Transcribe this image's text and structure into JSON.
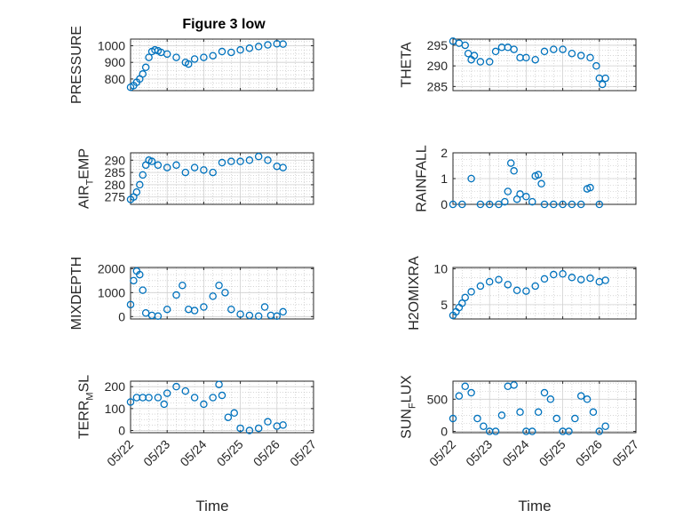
{
  "title": "Figure 3 low",
  "colors": {
    "marker": "#0072bd",
    "axis": "#262626",
    "grid": "#d0d0d0",
    "minor_grid": "#bdbdbd"
  },
  "time_ticks": [
    "05/22",
    "05/23",
    "05/24",
    "05/25",
    "05/26",
    "05/27"
  ],
  "xlabel": "Time",
  "chart_data": [
    {
      "type": "scatter",
      "ylabel": "PRESSURE",
      "ylim": [
        730,
        1040
      ],
      "yticks": [
        800,
        900,
        1000
      ],
      "grid": "on",
      "minor_grid": "on",
      "x": [
        "05/22 00:00",
        "05/22 02:00",
        "05/22 04:00",
        "05/22 06:00",
        "05/22 08:00",
        "05/22 10:00",
        "05/22 12:00",
        "05/22 14:00",
        "05/22 16:00",
        "05/22 18:00",
        "05/22 20:00",
        "05/23 00:00",
        "05/23 06:00",
        "05/23 12:00",
        "05/23 14:00",
        "05/23 18:00",
        "05/24 00:00",
        "05/24 06:00",
        "05/24 12:00",
        "05/24 18:00",
        "05/25 00:00",
        "05/25 06:00",
        "05/25 12:00",
        "05/25 18:00",
        "05/26 00:00",
        "05/26 04:00"
      ],
      "y": [
        750,
        760,
        780,
        800,
        830,
        870,
        930,
        965,
        975,
        970,
        960,
        950,
        930,
        900,
        890,
        920,
        930,
        940,
        965,
        960,
        975,
        985,
        995,
        1005,
        1012,
        1010
      ]
    },
    {
      "type": "scatter",
      "ylabel": "THETA",
      "ylim": [
        284,
        296.5
      ],
      "yticks": [
        285,
        290,
        295
      ],
      "grid": "on",
      "minor_grid": "on",
      "x": [
        "05/22 00:00",
        "05/22 04:00",
        "05/22 08:00",
        "05/22 10:00",
        "05/22 12:00",
        "05/22 14:00",
        "05/22 18:00",
        "05/23 00:00",
        "05/23 04:00",
        "05/23 08:00",
        "05/23 12:00",
        "05/23 16:00",
        "05/23 20:00",
        "05/24 00:00",
        "05/24 06:00",
        "05/24 12:00",
        "05/24 18:00",
        "05/25 00:00",
        "05/25 06:00",
        "05/25 12:00",
        "05/25 18:00",
        "05/25 22:00",
        "05/26 00:00",
        "05/26 02:00",
        "05/26 04:00"
      ],
      "y": [
        296,
        295.5,
        295,
        293,
        291.5,
        292.5,
        291,
        291,
        293.5,
        294.5,
        294.5,
        294,
        292,
        292,
        291.5,
        293.5,
        294,
        294,
        293,
        292.5,
        292,
        290,
        287,
        285.5,
        287
      ]
    },
    {
      "type": "scatter",
      "ylabel": "AIR_TEMP",
      "ylim": [
        272,
        293
      ],
      "yticks": [
        275,
        280,
        285,
        290
      ],
      "grid": "on",
      "minor_grid": "on",
      "x": [
        "05/22 00:00",
        "05/22 02:00",
        "05/22 04:00",
        "05/22 06:00",
        "05/22 08:00",
        "05/22 10:00",
        "05/22 12:00",
        "05/22 14:00",
        "05/22 18:00",
        "05/23 00:00",
        "05/23 06:00",
        "05/23 12:00",
        "05/23 18:00",
        "05/24 00:00",
        "05/24 06:00",
        "05/24 12:00",
        "05/24 18:00",
        "05/25 00:00",
        "05/25 06:00",
        "05/25 12:00",
        "05/25 18:00",
        "05/26 00:00",
        "05/26 04:00"
      ],
      "y": [
        274,
        275,
        277,
        280,
        284,
        288,
        290,
        289.5,
        288,
        287,
        288,
        285,
        287,
        286,
        285,
        289,
        289.5,
        289.5,
        290,
        291.5,
        290,
        287.5,
        287
      ]
    },
    {
      "type": "scatter",
      "ylabel": "RAINFALL",
      "ylim": [
        0,
        2
      ],
      "yticks": [
        0,
        1,
        2
      ],
      "grid": "on",
      "minor_grid": "on",
      "x": [
        "05/22 00:00",
        "05/22 06:00",
        "05/22 12:00",
        "05/22 18:00",
        "05/23 00:00",
        "05/23 06:00",
        "05/23 10:00",
        "05/23 12:00",
        "05/23 14:00",
        "05/23 16:00",
        "05/23 18:00",
        "05/23 20:00",
        "05/24 00:00",
        "05/24 04:00",
        "05/24 06:00",
        "05/24 08:00",
        "05/24 10:00",
        "05/24 12:00",
        "05/24 18:00",
        "05/25 00:00",
        "05/25 06:00",
        "05/25 12:00",
        "05/25 16:00",
        "05/25 18:00",
        "05/26 00:00"
      ],
      "y": [
        0,
        0,
        1.0,
        0,
        0,
        0,
        0.1,
        0.5,
        1.6,
        1.3,
        0.2,
        0.4,
        0.3,
        0.1,
        1.1,
        1.15,
        0.8,
        0,
        0,
        0,
        0,
        0,
        0.6,
        0.65,
        0
      ]
    },
    {
      "type": "scatter",
      "ylabel": "MIXDEPTH",
      "ylim": [
        -100,
        2050
      ],
      "yticks": [
        0,
        1000,
        2000
      ],
      "grid": "on",
      "minor_grid": "on",
      "x": [
        "05/22 00:00",
        "05/22 02:00",
        "05/22 04:00",
        "05/22 06:00",
        "05/22 08:00",
        "05/22 10:00",
        "05/22 14:00",
        "05/22 18:00",
        "05/23 00:00",
        "05/23 06:00",
        "05/23 10:00",
        "05/23 14:00",
        "05/23 18:00",
        "05/24 00:00",
        "05/24 06:00",
        "05/24 10:00",
        "05/24 14:00",
        "05/24 18:00",
        "05/25 00:00",
        "05/25 06:00",
        "05/25 12:00",
        "05/25 16:00",
        "05/25 20:00",
        "05/26 00:00",
        "05/26 04:00"
      ],
      "y": [
        500,
        1500,
        1900,
        1750,
        1100,
        150,
        50,
        20,
        300,
        900,
        1300,
        300,
        250,
        400,
        850,
        1300,
        1000,
        300,
        100,
        50,
        20,
        400,
        50,
        20,
        200
      ]
    },
    {
      "type": "scatter",
      "ylabel": "H2OMIXRA",
      "ylim": [
        3,
        10.2
      ],
      "yticks": [
        5,
        10
      ],
      "grid": "on",
      "minor_grid": "on",
      "x": [
        "05/22 00:00",
        "05/22 02:00",
        "05/22 04:00",
        "05/22 06:00",
        "05/22 08:00",
        "05/22 12:00",
        "05/22 18:00",
        "05/23 00:00",
        "05/23 06:00",
        "05/23 12:00",
        "05/23 18:00",
        "05/24 00:00",
        "05/24 06:00",
        "05/24 12:00",
        "05/24 18:00",
        "05/25 00:00",
        "05/25 06:00",
        "05/25 12:00",
        "05/25 18:00",
        "05/26 00:00",
        "05/26 04:00"
      ],
      "y": [
        3.5,
        4.0,
        4.6,
        5.2,
        6.0,
        6.8,
        7.6,
        8.2,
        8.5,
        7.8,
        7.0,
        6.9,
        7.6,
        8.6,
        9.2,
        9.3,
        8.8,
        8.5,
        8.7,
        8.2,
        8.4
      ]
    },
    {
      "type": "scatter",
      "ylabel": "TERR_MSL",
      "ylim": [
        -10,
        225
      ],
      "yticks": [
        0,
        100,
        200
      ],
      "grid": "on",
      "minor_grid": "on",
      "x": [
        "05/22 00:00",
        "05/22 04:00",
        "05/22 08:00",
        "05/22 12:00",
        "05/22 18:00",
        "05/22 22:00",
        "05/23 00:00",
        "05/23 06:00",
        "05/23 12:00",
        "05/23 18:00",
        "05/24 00:00",
        "05/24 06:00",
        "05/24 10:00",
        "05/24 12:00",
        "05/24 16:00",
        "05/24 20:00",
        "05/25 00:00",
        "05/25 06:00",
        "05/25 12:00",
        "05/25 18:00",
        "05/26 00:00",
        "05/26 04:00"
      ],
      "y": [
        130,
        150,
        150,
        150,
        150,
        120,
        170,
        200,
        180,
        150,
        120,
        150,
        210,
        160,
        60,
        80,
        10,
        0,
        10,
        40,
        20,
        25
      ]
    },
    {
      "type": "scatter",
      "ylabel": "SUN_FLUX",
      "ylim": [
        -20,
        780
      ],
      "yticks": [
        0,
        500
      ],
      "grid": "on",
      "minor_grid": "on",
      "x": [
        "05/22 00:00",
        "05/22 04:00",
        "05/22 08:00",
        "05/22 12:00",
        "05/22 16:00",
        "05/22 20:00",
        "05/23 00:00",
        "05/23 04:00",
        "05/23 08:00",
        "05/23 12:00",
        "05/23 16:00",
        "05/23 20:00",
        "05/24 00:00",
        "05/24 04:00",
        "05/24 08:00",
        "05/24 12:00",
        "05/24 16:00",
        "05/24 20:00",
        "05/25 00:00",
        "05/25 04:00",
        "05/25 08:00",
        "05/25 12:00",
        "05/25 16:00",
        "05/25 20:00",
        "05/26 00:00",
        "05/26 04:00"
      ],
      "y": [
        200,
        550,
        700,
        600,
        200,
        80,
        0,
        0,
        250,
        700,
        720,
        300,
        0,
        0,
        300,
        600,
        500,
        200,
        0,
        0,
        200,
        550,
        500,
        300,
        0,
        80
      ]
    }
  ]
}
